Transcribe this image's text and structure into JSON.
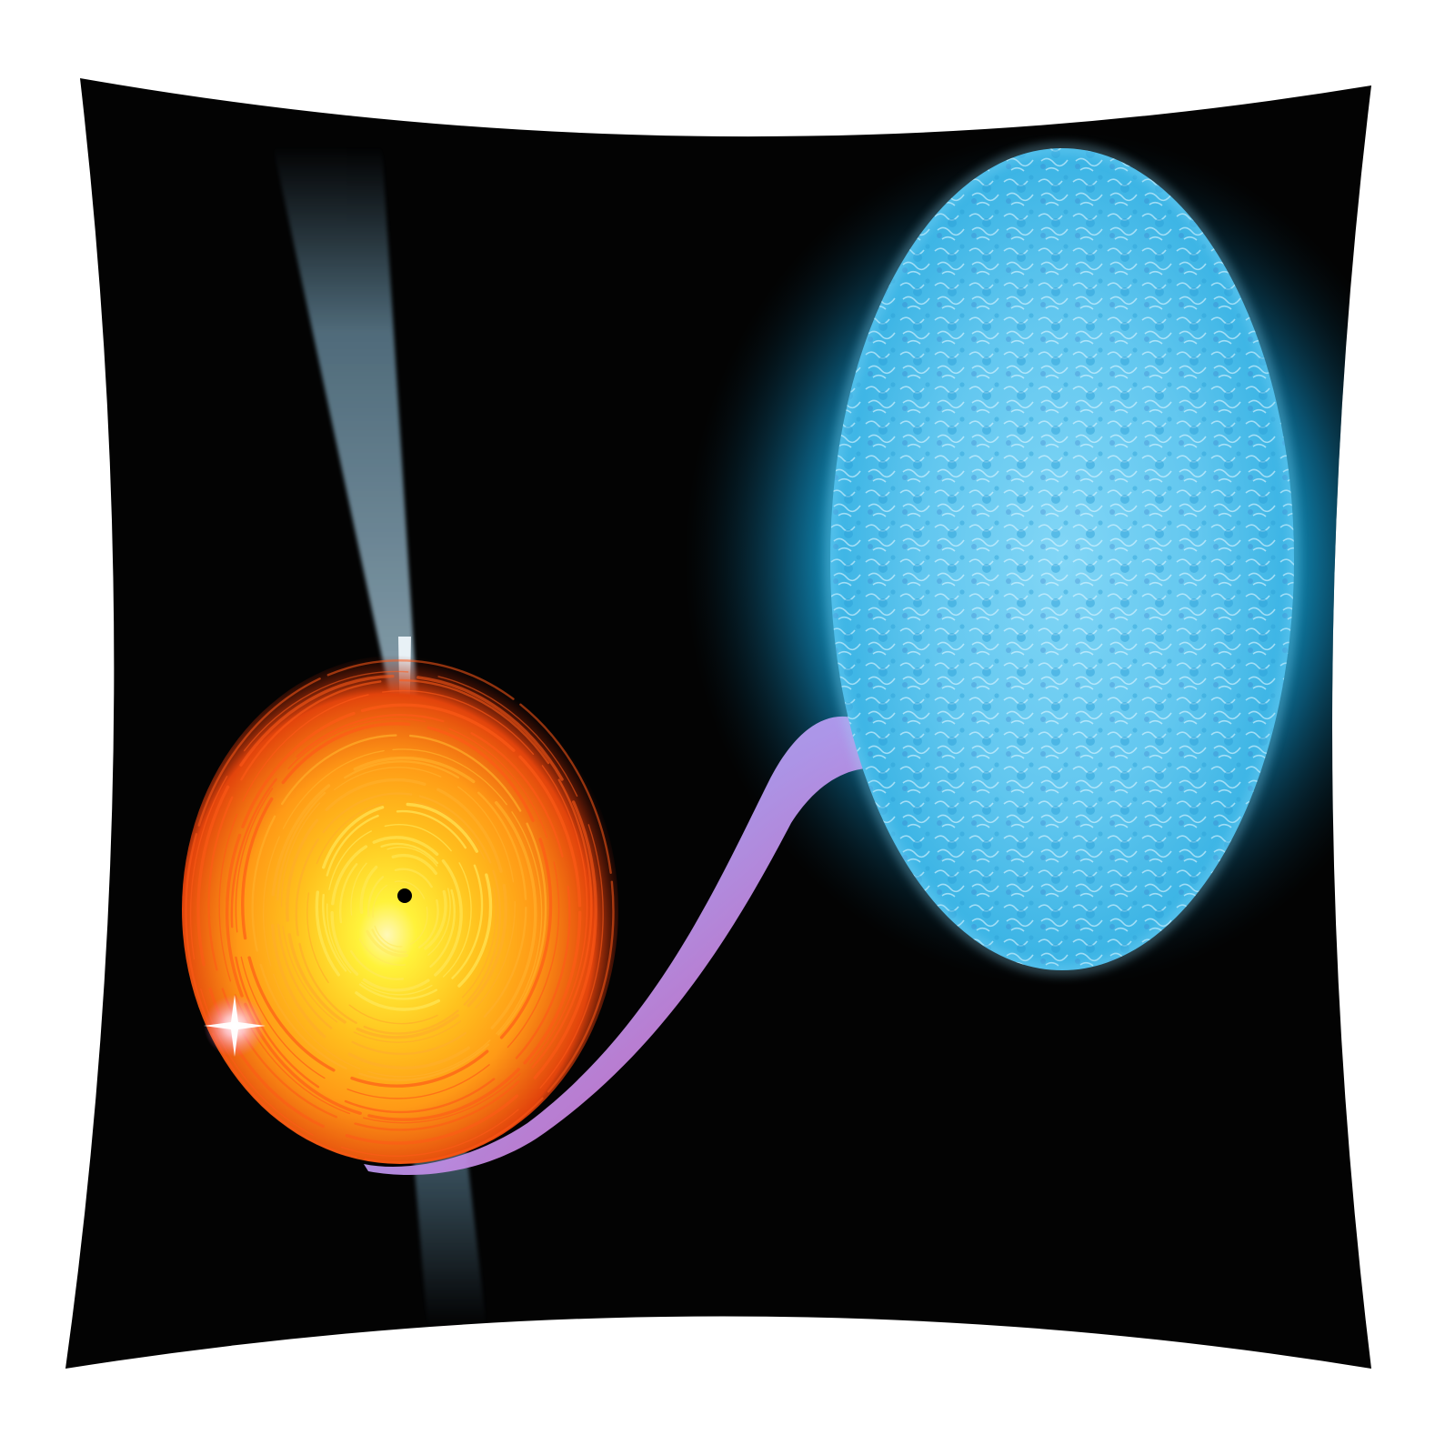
{
  "image": {
    "subject": "pillow-cover-print",
    "content": [
      "black-hole-accretion-disk",
      "blue-giant-star",
      "mass-transfer-stream",
      "relativistic-jet",
      "twinkle-star"
    ]
  },
  "colors": {
    "page_background": "#ffffff",
    "pillow_fabric": "#030303",
    "disk_core": "#fff23a",
    "disk_mid": "#ff9a16",
    "disk_outer": "#d8280a",
    "star_surface": "#5ec6ef",
    "star_glow": "#17b4e8",
    "stream_start": "#c0a6f2",
    "stream_end": "#e34a9b",
    "jet": "#b7dfff"
  }
}
